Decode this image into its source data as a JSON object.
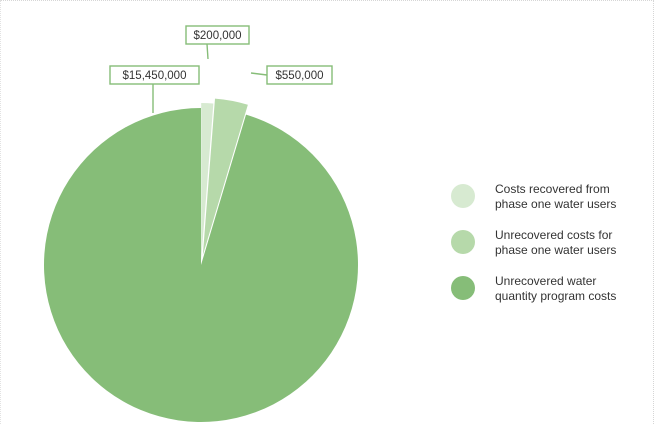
{
  "chart_data": {
    "type": "pie",
    "title": "",
    "slices": [
      {
        "label": "Costs recovered from phase one water users",
        "value": 200000,
        "value_label": "$200,000",
        "color": "#d7ead1"
      },
      {
        "label": "Unrecovered costs for phase one water users",
        "value": 550000,
        "value_label": "$550,000",
        "color": "#b6d9aa"
      },
      {
        "label": "Unrecovered water quantity program costs",
        "value": 15450000,
        "value_label": "$15,450,000",
        "color": "#86bd78"
      }
    ],
    "legend": {
      "placement": "right",
      "entries": [
        {
          "line1": "Costs recovered from",
          "line2": "phase one water users",
          "color": "#d7ead1"
        },
        {
          "line1": "Unrecovered costs for",
          "line2": "phase one water users",
          "color": "#b6d9aa"
        },
        {
          "line1": "Unrecovered water",
          "line2": "quantity program costs",
          "color": "#86bd78"
        }
      ]
    },
    "label_border_color": "#86bd78"
  }
}
